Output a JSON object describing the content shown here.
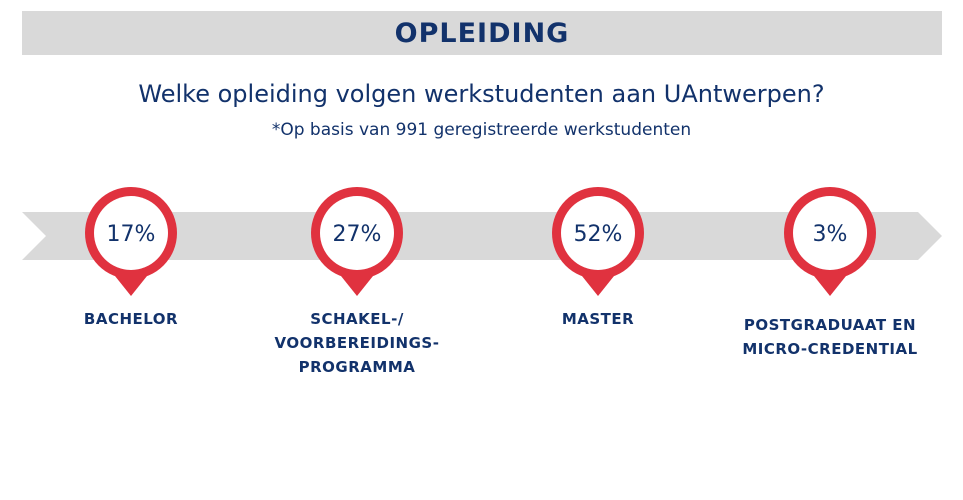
{
  "header": {
    "title": "OPLEIDING"
  },
  "question": "Welke opleiding volgen werkstudenten aan UAntwerpen?",
  "note": "*Op basis van 991 geregistreerde werkstudenten",
  "colors": {
    "navy": "#12326b",
    "red": "#e0323f",
    "band": "#d9d9d9",
    "white": "#ffffff"
  },
  "chart_data": {
    "type": "bar",
    "categories": [
      "BACHELOR",
      "SCHAKEL-/ VOORBEREIDINGS- PROGRAMMA",
      "MASTER",
      "POSTGRADUAAT EN MICRO-CREDENTIAL"
    ],
    "values": [
      17,
      27,
      52,
      3
    ],
    "value_labels": [
      "17%",
      "27%",
      "52%",
      "3%"
    ],
    "unit": "%"
  }
}
